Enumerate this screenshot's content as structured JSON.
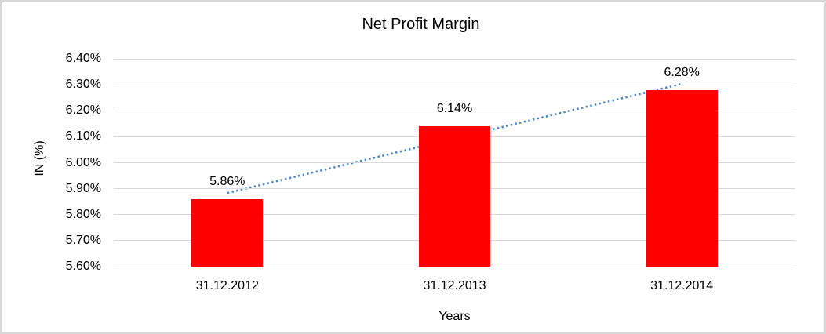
{
  "chart_data": {
    "type": "bar",
    "title": "Net Profit Margin",
    "xlabel": "Years",
    "ylabel": "IN (%)",
    "categories": [
      "31.12.2012",
      "31.12.2013",
      "31.12.2014"
    ],
    "values": [
      5.86,
      6.14,
      6.28
    ],
    "data_labels": [
      "5.86%",
      "6.14%",
      "6.28%"
    ],
    "ylim": [
      5.6,
      6.4
    ],
    "ytick_labels": [
      "6.40%",
      "6.30%",
      "6.20%",
      "6.10%",
      "6.00%",
      "5.90%",
      "5.80%",
      "5.70%",
      "5.60%"
    ],
    "grid": true,
    "legend_position": "none",
    "bar_color": "#ff0000",
    "gridline_color": "#d9d9d9",
    "trendline": {
      "type": "linear",
      "style": "dotted",
      "color": "#4f86c6"
    }
  }
}
